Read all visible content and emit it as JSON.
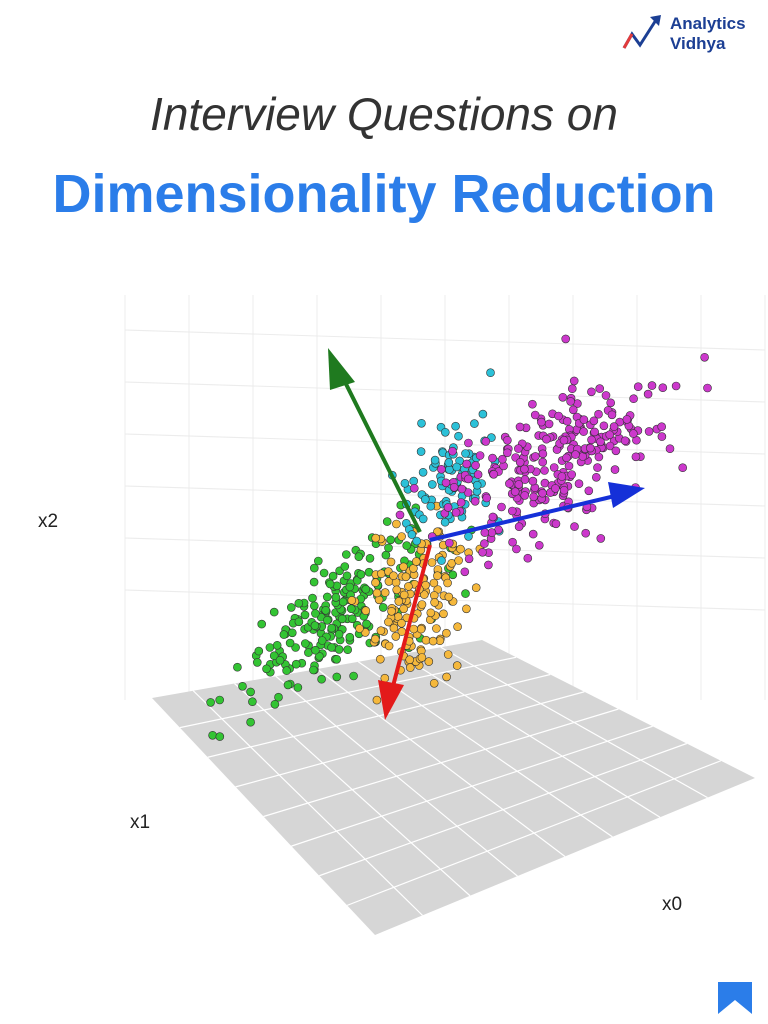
{
  "header": {
    "logo": {
      "line1": "Analytics",
      "line2": "Vidhya"
    },
    "title": "Interview Questions on",
    "subtitle": "Dimensionality Reduction"
  },
  "figure": {
    "axes": [
      "x2",
      "x1",
      "x0"
    ]
  }
}
